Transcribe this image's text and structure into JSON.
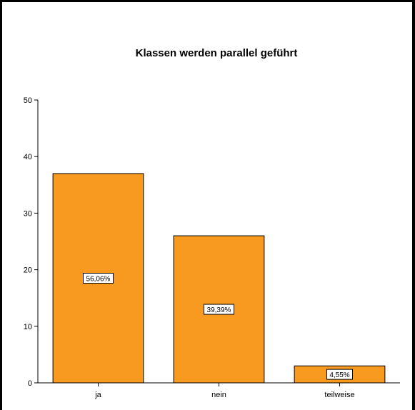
{
  "chart_data": {
    "type": "bar",
    "title": "Klassen werden parallel geführt",
    "xlabel": "",
    "ylabel": "",
    "categories": [
      "ja",
      "nein",
      "teilweise"
    ],
    "values": [
      37,
      26,
      3
    ],
    "data_labels": [
      "56,06%",
      "39,39%",
      "4,55%"
    ],
    "ylim": [
      0,
      50
    ],
    "yticks": [
      0,
      10,
      20,
      30,
      40,
      50
    ],
    "grid": false,
    "legend": "none",
    "colors": {
      "bar_fill": "#f79a1f",
      "bar_stroke": "#000000",
      "axis": "#000000"
    }
  }
}
